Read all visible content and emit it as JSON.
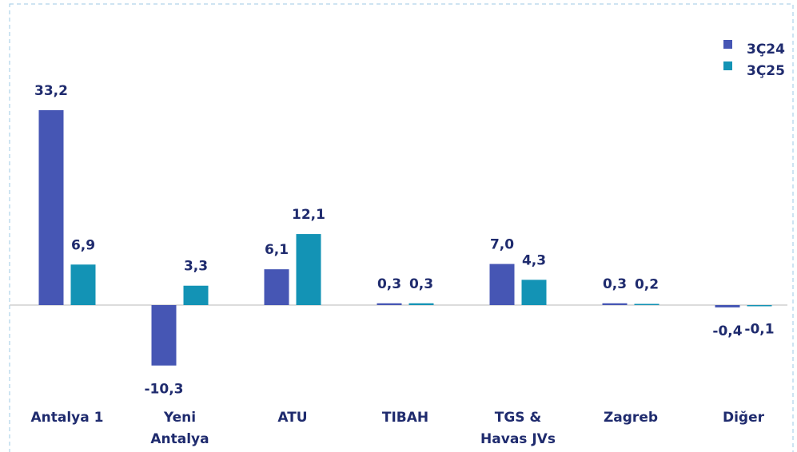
{
  "chart_data": {
    "type": "bar",
    "categories": [
      "Antalya 1",
      "Yeni Antalya",
      "ATU",
      "TIBAH",
      "TGS & Havas JVs",
      "Zagreb",
      "Diğer"
    ],
    "series": [
      {
        "name": "3Ç24",
        "color": "#4656b4",
        "values": [
          33.2,
          -10.3,
          6.1,
          0.3,
          7.0,
          0.3,
          -0.4
        ],
        "value_labels": [
          "33,2",
          "-10,3",
          "6,1",
          "0,3",
          "7,0",
          "0,3",
          "-0,4"
        ]
      },
      {
        "name": "3Ç25",
        "color": "#1393b5",
        "values": [
          6.9,
          3.3,
          12.1,
          0.3,
          4.3,
          0.2,
          -0.1
        ],
        "value_labels": [
          "6,9",
          "3,3",
          "12,1",
          "0,3",
          "4,3",
          "0,2",
          "-0,1"
        ]
      }
    ],
    "legend": "top-right"
  }
}
